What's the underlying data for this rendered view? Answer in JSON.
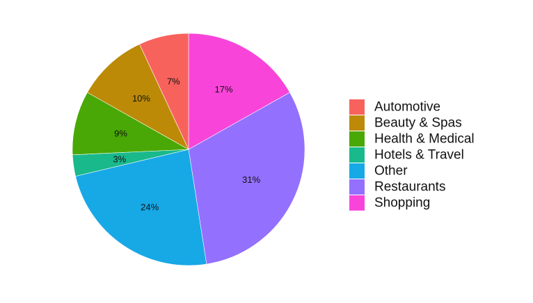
{
  "chart_data": {
    "type": "pie",
    "title": "",
    "legend": "right",
    "start_angle": "12 o'clock, clockwise",
    "slices": [
      {
        "label": "Shopping",
        "value": 17,
        "display": "17%",
        "color": "#F944D9"
      },
      {
        "label": "Restaurants",
        "value": 31,
        "display": "31%",
        "color": "#9470FF"
      },
      {
        "label": "Other",
        "value": 24,
        "display": "24%",
        "color": "#17A8E6"
      },
      {
        "label": "Hotels & Travel",
        "value": 3,
        "display": "3%",
        "color": "#19B98C"
      },
      {
        "label": "Health & Medical",
        "value": 9,
        "display": "9%",
        "color": "#49A805"
      },
      {
        "label": "Beauty & Spas",
        "value": 10,
        "display": "10%",
        "color": "#BC8A06"
      },
      {
        "label": "Automotive",
        "value": 7,
        "display": "7%",
        "color": "#F8625D"
      }
    ],
    "legend_order": [
      "Automotive",
      "Beauty & Spas",
      "Health & Medical",
      "Hotels & Travel",
      "Other",
      "Restaurants",
      "Shopping"
    ]
  }
}
